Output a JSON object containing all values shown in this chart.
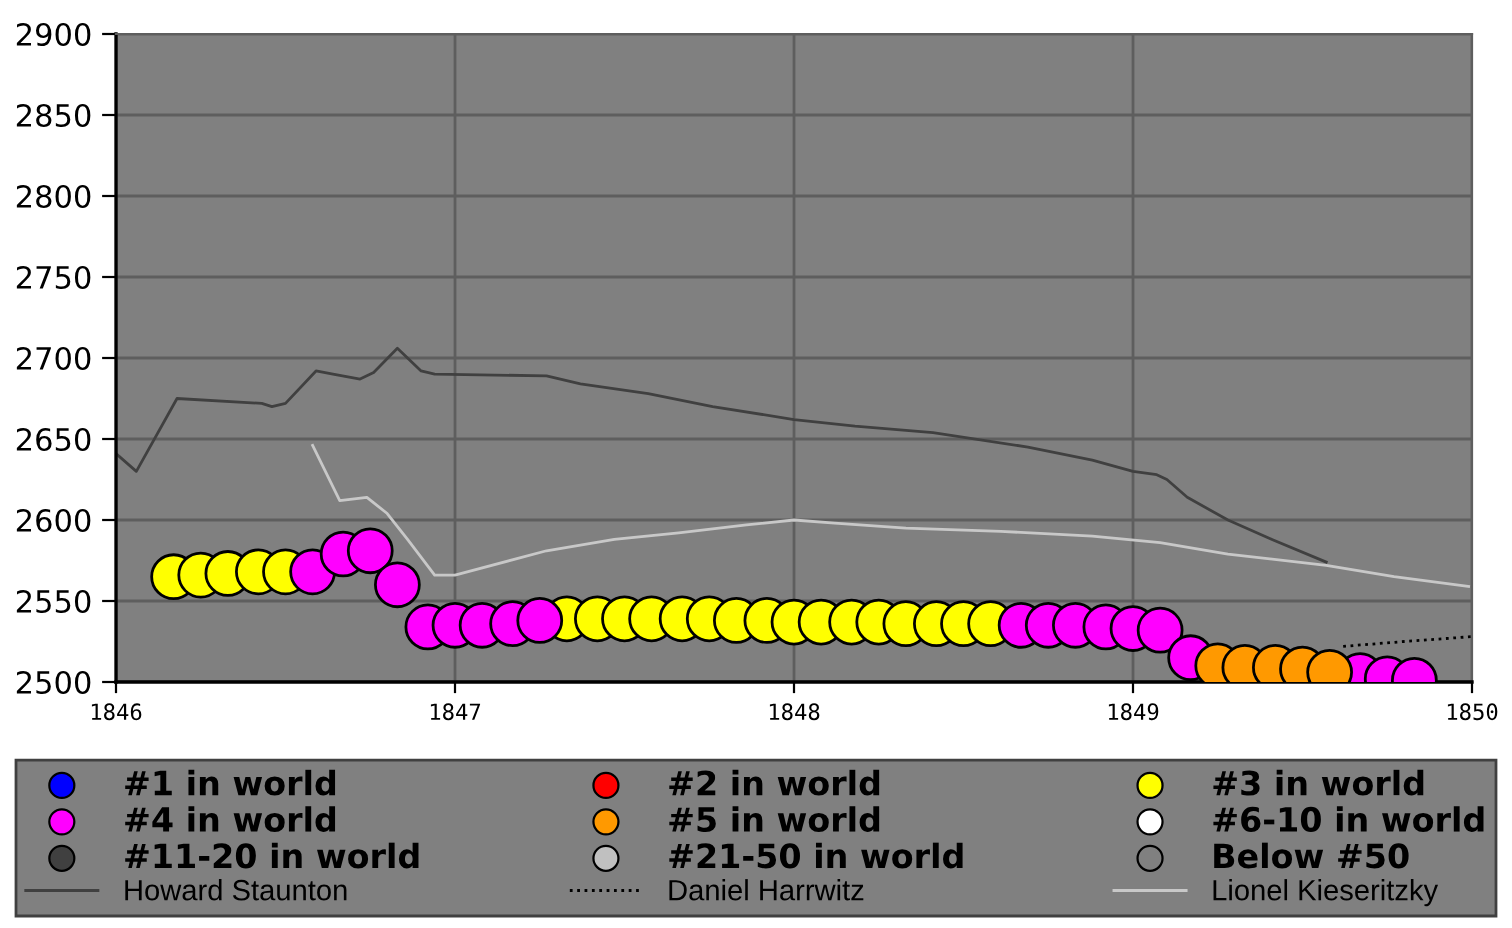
{
  "chart_data": {
    "type": "scatter",
    "xlim": [
      1846,
      1850
    ],
    "xticks": [
      1846,
      1847,
      1848,
      1849,
      1850
    ],
    "ylim": [
      2500,
      2900
    ],
    "yticks": [
      2500,
      2550,
      2600,
      2650,
      2700,
      2750,
      2800,
      2850,
      2900
    ],
    "grid": true,
    "legend": "bottom",
    "series": [
      {
        "name": "#1 in world",
        "marker": "circle",
        "color": "#0000ff"
      },
      {
        "name": "#2 in world",
        "marker": "circle",
        "color": "#ff0000"
      },
      {
        "name": "#3 in world",
        "marker": "circle",
        "color": "#ffff00",
        "x": [
          1846.17,
          1846.25,
          1846.33,
          1846.42,
          1846.5,
          1847.33,
          1847.42,
          1847.5,
          1847.58,
          1847.67,
          1847.75,
          1847.83,
          1847.92,
          1848.0,
          1848.08,
          1848.17,
          1848.25,
          1848.33,
          1848.42,
          1848.5,
          1848.58
        ],
        "values": [
          2565,
          2566,
          2567,
          2568,
          2568,
          2539,
          2539,
          2539,
          2539,
          2539,
          2539,
          2538,
          2538,
          2537,
          2537,
          2537,
          2537,
          2536,
          2536,
          2536,
          2536
        ]
      },
      {
        "name": "#4 in world",
        "marker": "circle",
        "color": "#ff00ff",
        "x": [
          1846.58,
          1846.67,
          1846.75,
          1846.83,
          1846.92,
          1847.0,
          1847.08,
          1847.17,
          1847.25,
          1848.67,
          1848.75,
          1848.83,
          1848.92,
          1849.0,
          1849.08,
          1849.17,
          1849.67,
          1849.75,
          1849.83
        ],
        "values": [
          2568,
          2579,
          2581,
          2560,
          2534,
          2535,
          2535,
          2536,
          2538,
          2535,
          2535,
          2535,
          2534,
          2533,
          2532,
          2515,
          2504,
          2502,
          2501
        ]
      },
      {
        "name": "#5 in world",
        "marker": "circle",
        "color": "#ff9900",
        "x": [
          1849.25,
          1849.33,
          1849.42,
          1849.5,
          1849.58
        ],
        "values": [
          2510,
          2509,
          2509,
          2508,
          2506
        ]
      },
      {
        "name": "#6-10 in world",
        "marker": "circle",
        "color": "#ffffff"
      },
      {
        "name": "#11-20 in world",
        "marker": "circle",
        "color": "#404040"
      },
      {
        "name": "#21-50 in world",
        "marker": "circle",
        "color": "#c0c0c0"
      },
      {
        "name": "Below #50",
        "marker": "circle",
        "color": "#808080"
      },
      {
        "name": "Howard Staunton",
        "type": "line",
        "line_style": "solid",
        "color": "#404040",
        "x": [
          1846.0,
          1846.06,
          1846.18,
          1846.43,
          1846.46,
          1846.5,
          1846.59,
          1846.64,
          1846.72,
          1846.76,
          1846.83,
          1846.9,
          1846.94,
          1847.27,
          1847.37,
          1847.57,
          1847.76,
          1848.0,
          1848.18,
          1848.41,
          1848.69,
          1848.88,
          1849.0,
          1849.07,
          1849.1,
          1849.16,
          1849.28,
          1849.41,
          1849.57
        ],
        "values": [
          2641,
          2630,
          2675,
          2672,
          2670,
          2672,
          2692,
          2690,
          2687,
          2691,
          2706,
          2692,
          2690,
          2689,
          2684,
          2678,
          2670,
          2662,
          2658,
          2654,
          2645,
          2637,
          2630,
          2628,
          2625,
          2614,
          2600,
          2588,
          2574
        ]
      },
      {
        "name": "Daniel Harrwitz",
        "type": "line",
        "line_style": "dotted",
        "color": "#000000",
        "x": [
          1849.62,
          1849.8,
          1850.0
        ],
        "values": [
          2522,
          2525,
          2528
        ]
      },
      {
        "name": "Lionel Kieseritzky",
        "type": "line",
        "line_style": "solid",
        "color": "#c8c8c8",
        "x": [
          1846.58,
          1846.66,
          1846.74,
          1846.8,
          1846.86,
          1846.94,
          1847.0,
          1847.27,
          1847.47,
          1847.66,
          1847.86,
          1848.0,
          1848.12,
          1848.33,
          1848.61,
          1848.88,
          1849.08,
          1849.28,
          1849.57,
          1849.77,
          1849.99
        ],
        "values": [
          2646,
          2612,
          2614,
          2604,
          2588,
          2566,
          2566,
          2581,
          2588,
          2592,
          2597,
          2600,
          2598,
          2595,
          2593,
          2590,
          2586,
          2579,
          2572,
          2565,
          2559
        ]
      }
    ]
  }
}
